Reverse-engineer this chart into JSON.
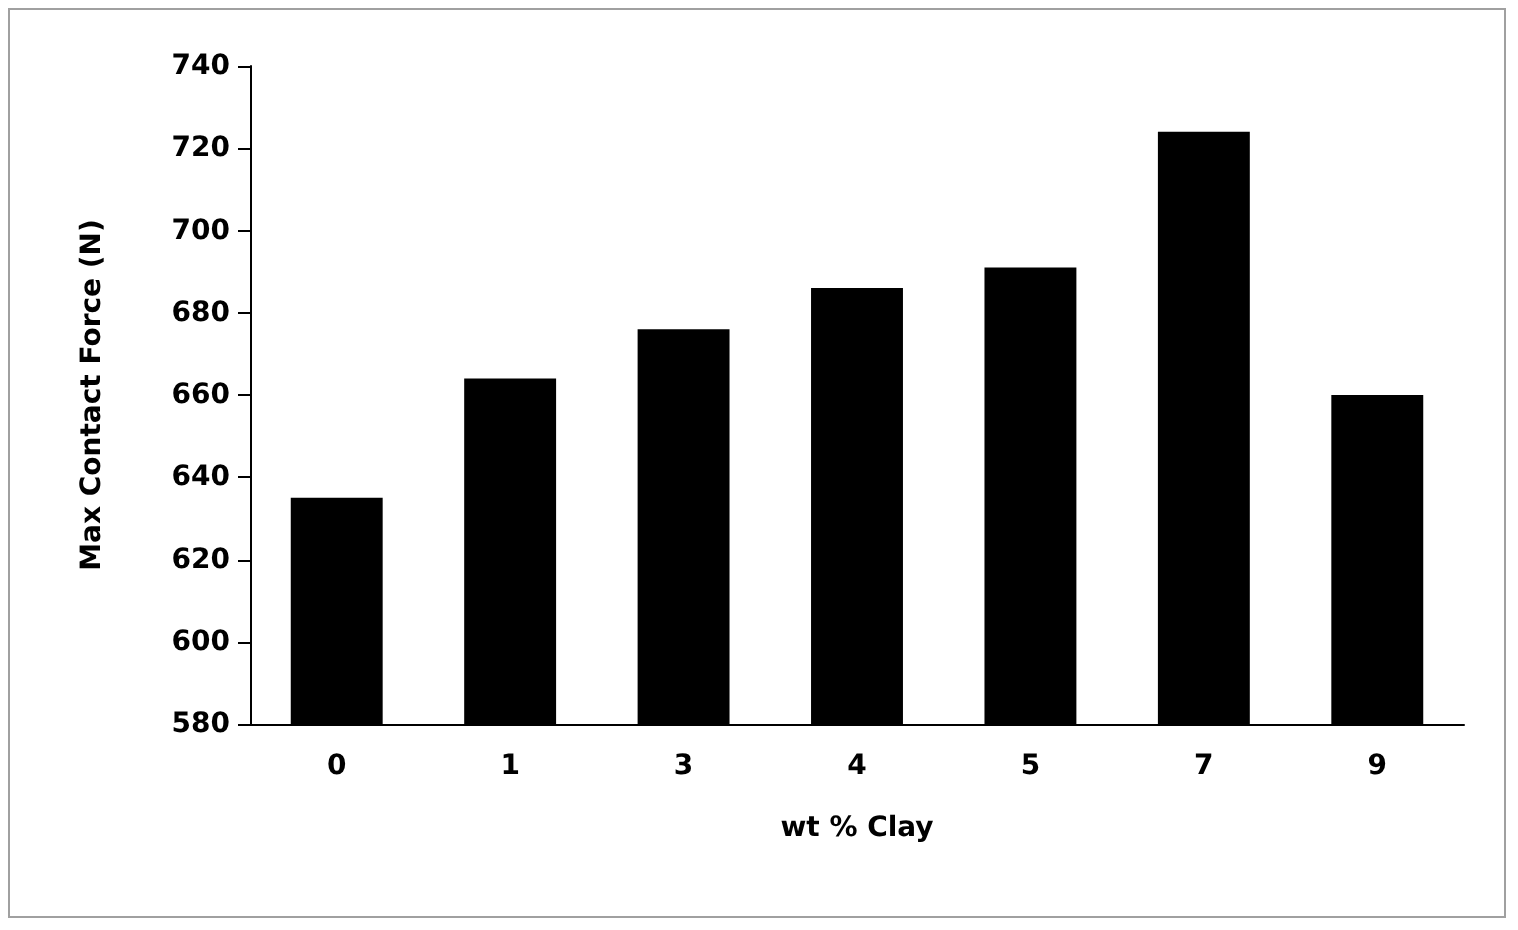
{
  "chart_data": {
    "type": "bar",
    "xlabel": "wt % Clay",
    "ylabel": "Max Contact Force (N)",
    "categories": [
      "0",
      "1",
      "3",
      "4",
      "5",
      "7",
      "9"
    ],
    "values": [
      635,
      664,
      676,
      686,
      691,
      724,
      660
    ],
    "color": "#000000",
    "ylim": [
      580,
      740
    ],
    "yticks": [
      580,
      600,
      620,
      640,
      660,
      680,
      700,
      720,
      740
    ],
    "grid": false
  }
}
